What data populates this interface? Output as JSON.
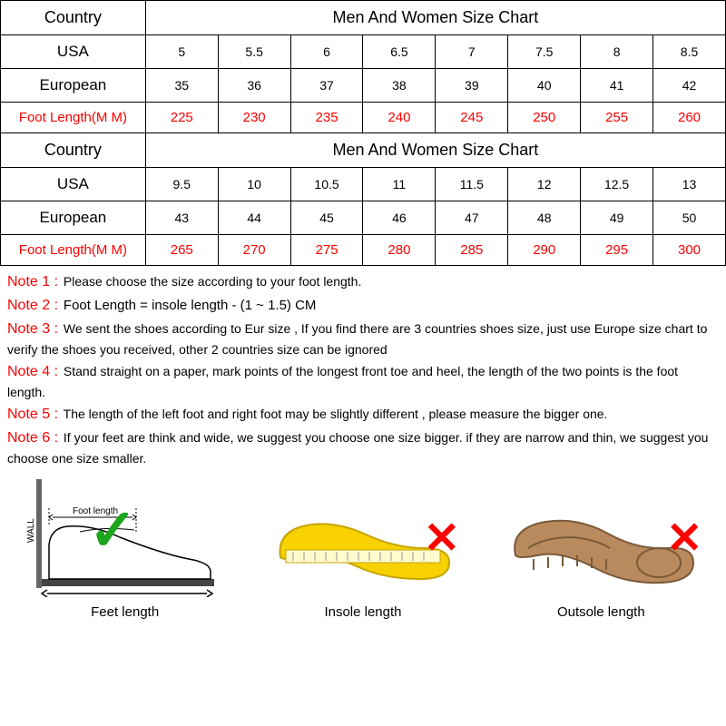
{
  "table": {
    "border_color": "#000000",
    "background_color": "#ffffff",
    "header_text_color": "#000000",
    "red_color": "#ff0000",
    "section1": {
      "country_label": "Country",
      "title": "Men And Women Size Chart",
      "row_usa_label": "USA",
      "usa": [
        "5",
        "5.5",
        "6",
        "6.5",
        "7",
        "7.5",
        "8",
        "8.5"
      ],
      "row_eur_label": "European",
      "eur": [
        "35",
        "36",
        "37",
        "38",
        "39",
        "40",
        "41",
        "42"
      ],
      "row_foot_label": "Foot Length(M M)",
      "foot": [
        "225",
        "230",
        "235",
        "240",
        "245",
        "250",
        "255",
        "260"
      ]
    },
    "section2": {
      "country_label": "Country",
      "title": "Men And Women Size Chart",
      "row_usa_label": "USA",
      "usa": [
        "9.5",
        "10",
        "10.5",
        "11",
        "11.5",
        "12",
        "12.5",
        "13"
      ],
      "row_eur_label": "European",
      "eur": [
        "43",
        "44",
        "45",
        "46",
        "47",
        "48",
        "49",
        "50"
      ],
      "row_foot_label": "Foot Length(M M)",
      "foot": [
        "265",
        "270",
        "275",
        "280",
        "285",
        "290",
        "295",
        "300"
      ]
    }
  },
  "notes": [
    {
      "label": "Note 1 :",
      "text": "Please choose the size according to your foot length."
    },
    {
      "label": "Note 2 :",
      "text": "Foot Length = insole length  -  (1 ~ 1.5) CM",
      "em": true
    },
    {
      "label": "Note 3 :",
      "text": "We sent the shoes according to Eur size , If you find there are 3 countries shoes size, just use Europe size chart to verify the shoes you received, other 2 countries size can be ignored"
    },
    {
      "label": "Note 4 :",
      "text": "Stand straight on a paper, mark points of the longest front toe and heel, the length of the two points is the foot length."
    },
    {
      "label": "Note 5 :",
      "text": "The length of the left foot and right foot may be slightly different , please measure the bigger one."
    },
    {
      "label": "Note 6 :",
      "text": "If your feet are think and wide, we suggest you choose one size bigger. if they are narrow and thin, we suggest you choose one size smaller."
    }
  ],
  "diagrams": {
    "feet": {
      "caption": "Feet length",
      "mark": "check"
    },
    "insole": {
      "caption": "Insole length",
      "mark": "x"
    },
    "outsole": {
      "caption": "Outsole length",
      "mark": "x"
    },
    "check_color": "#1ea51e",
    "x_color": "#ff0000",
    "insole_color": "#f7d100",
    "outsole_color": "#b88a5e"
  }
}
